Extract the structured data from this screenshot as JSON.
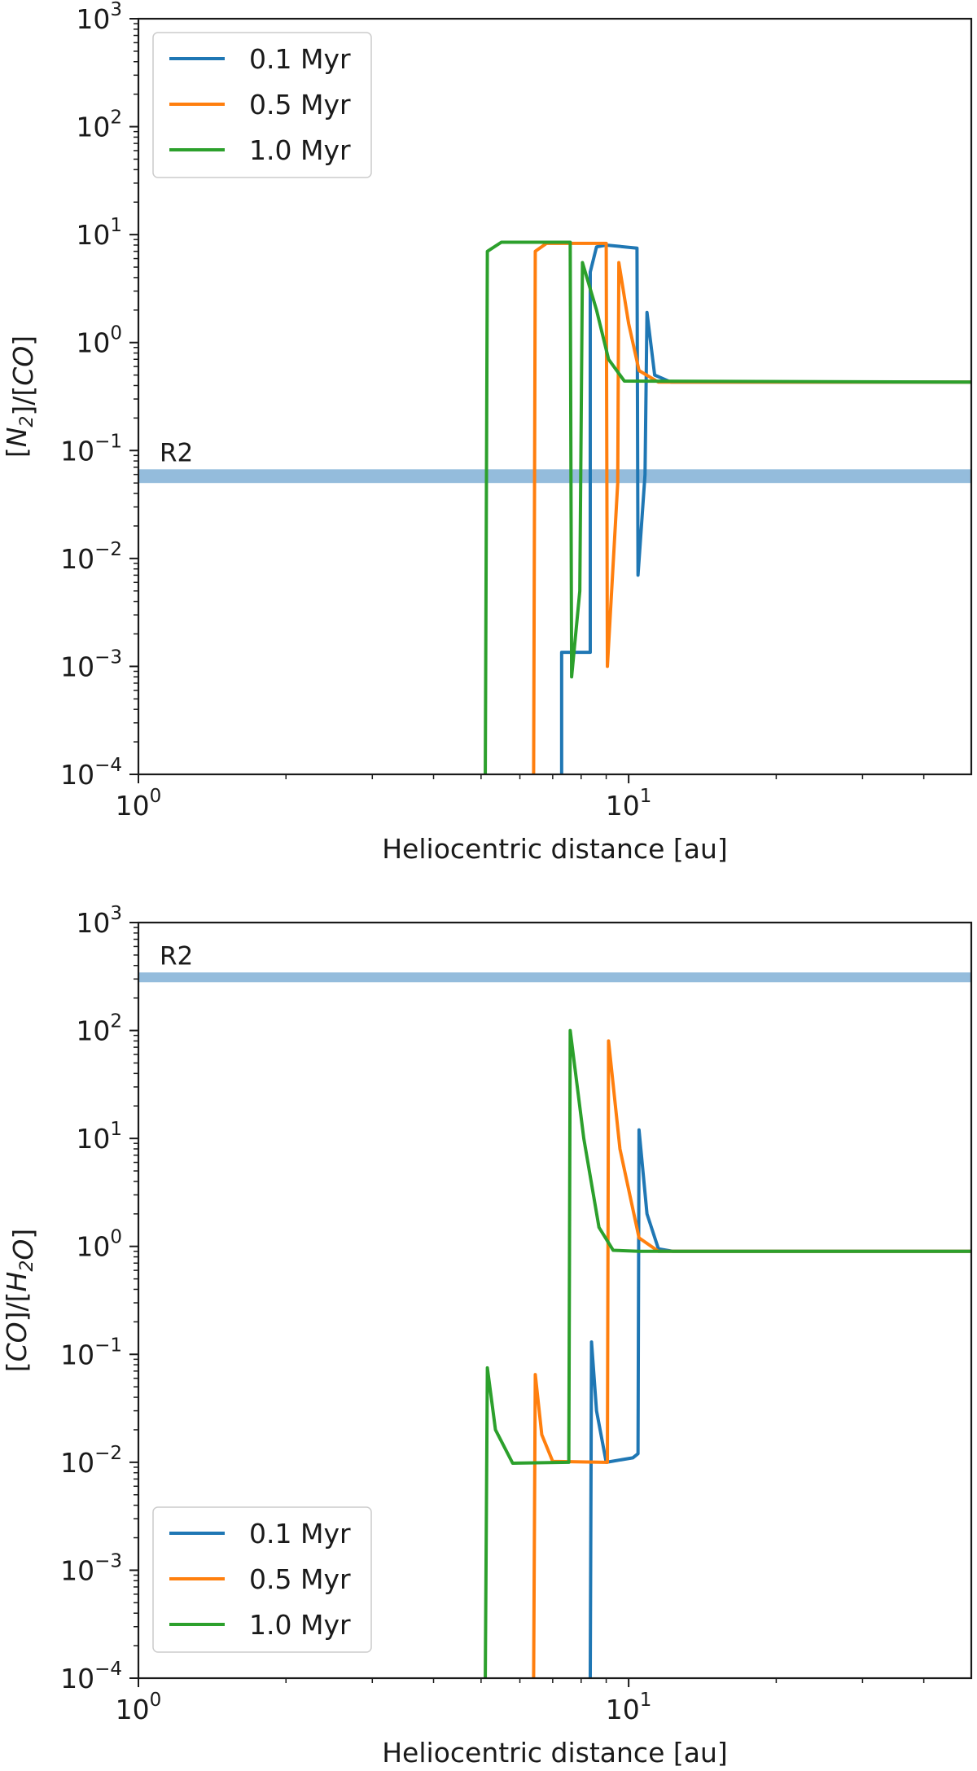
{
  "chart_data": [
    {
      "type": "line",
      "xscale": "log",
      "yscale": "log",
      "xlim": [
        1,
        50
      ],
      "ylim": [
        0.0001,
        1000
      ],
      "xlabel": "Heliocentric distance [au]",
      "ylabel": "[N2]/[CO]",
      "x_ticks": [
        {
          "value": 1,
          "base": "10",
          "exp": "0"
        },
        {
          "value": 10,
          "base": "10",
          "exp": "1"
        }
      ],
      "y_ticks": [
        {
          "value": 0.0001,
          "base": "10",
          "exp": "−4"
        },
        {
          "value": 0.001,
          "base": "10",
          "exp": "−3"
        },
        {
          "value": 0.01,
          "base": "10",
          "exp": "−2"
        },
        {
          "value": 0.1,
          "base": "10",
          "exp": "−1"
        },
        {
          "value": 1,
          "base": "10",
          "exp": "0"
        },
        {
          "value": 10,
          "base": "10",
          "exp": "1"
        },
        {
          "value": 100,
          "base": "10",
          "exp": "2"
        },
        {
          "value": 1000,
          "base": "10",
          "exp": "3"
        }
      ],
      "legend": "upper-left",
      "reference_band": {
        "label": "R2",
        "y_range": [
          0.05,
          0.067
        ],
        "color": "#94bcdc"
      },
      "series": [
        {
          "name": "0.1 Myr",
          "color": "#1f77b4",
          "points": [
            [
              7.3,
              0.0001
            ],
            [
              7.3,
              0.00135
            ],
            [
              8.35,
              0.00135
            ],
            [
              8.35,
              4.5
            ],
            [
              8.6,
              7.7
            ],
            [
              9.0,
              8.0
            ],
            [
              10.4,
              7.5
            ],
            [
              10.45,
              0.007
            ],
            [
              10.8,
              0.06
            ],
            [
              10.9,
              1.9
            ],
            [
              11.3,
              0.5
            ],
            [
              12.2,
              0.43
            ],
            [
              50,
              0.43
            ]
          ]
        },
        {
          "name": "0.5 Myr",
          "color": "#ff7f0e",
          "points": [
            [
              6.4,
              0.0001
            ],
            [
              6.45,
              7.0
            ],
            [
              6.8,
              8.3
            ],
            [
              9.0,
              8.3
            ],
            [
              9.05,
              0.001
            ],
            [
              9.5,
              0.05
            ],
            [
              9.55,
              5.5
            ],
            [
              10.0,
              1.5
            ],
            [
              10.5,
              0.55
            ],
            [
              11.5,
              0.43
            ],
            [
              50,
              0.43
            ]
          ]
        },
        {
          "name": "1.0 Myr",
          "color": "#2ca02c",
          "points": [
            [
              5.1,
              0.0001
            ],
            [
              5.15,
              7.0
            ],
            [
              5.5,
              8.5
            ],
            [
              7.6,
              8.5
            ],
            [
              7.65,
              0.0008
            ],
            [
              7.95,
              0.005
            ],
            [
              8.05,
              5.5
            ],
            [
              8.6,
              2.0
            ],
            [
              9.1,
              0.7
            ],
            [
              9.8,
              0.44
            ],
            [
              50,
              0.43
            ]
          ]
        }
      ]
    },
    {
      "type": "line",
      "xscale": "log",
      "yscale": "log",
      "xlim": [
        1,
        50
      ],
      "ylim": [
        0.0001,
        1000
      ],
      "xlabel": "Heliocentric distance [au]",
      "ylabel": "[CO]/[H2O]",
      "x_ticks": [
        {
          "value": 1,
          "base": "10",
          "exp": "0"
        },
        {
          "value": 10,
          "base": "10",
          "exp": "1"
        }
      ],
      "y_ticks": [
        {
          "value": 0.0001,
          "base": "10",
          "exp": "−4"
        },
        {
          "value": 0.001,
          "base": "10",
          "exp": "−3"
        },
        {
          "value": 0.01,
          "base": "10",
          "exp": "−2"
        },
        {
          "value": 0.1,
          "base": "10",
          "exp": "−1"
        },
        {
          "value": 1,
          "base": "10",
          "exp": "0"
        },
        {
          "value": 10,
          "base": "10",
          "exp": "1"
        },
        {
          "value": 100,
          "base": "10",
          "exp": "2"
        },
        {
          "value": 1000,
          "base": "10",
          "exp": "3"
        }
      ],
      "legend": "lower-left",
      "reference_band": {
        "label": "R2",
        "y_range": [
          280,
          345
        ],
        "color": "#94bcdc"
      },
      "series": [
        {
          "name": "0.1 Myr",
          "color": "#1f77b4",
          "points": [
            [
              8.35,
              0.0001
            ],
            [
              8.4,
              0.13
            ],
            [
              8.6,
              0.03
            ],
            [
              9.0,
              0.01
            ],
            [
              10.2,
              0.011
            ],
            [
              10.45,
              0.012
            ],
            [
              10.5,
              12.0
            ],
            [
              10.9,
              2.0
            ],
            [
              11.5,
              0.95
            ],
            [
              12.3,
              0.9
            ],
            [
              50,
              0.9
            ]
          ]
        },
        {
          "name": "0.5 Myr",
          "color": "#ff7f0e",
          "points": [
            [
              6.4,
              0.0001
            ],
            [
              6.45,
              0.065
            ],
            [
              6.65,
              0.018
            ],
            [
              7.0,
              0.0102
            ],
            [
              8.9,
              0.01
            ],
            [
              9.05,
              0.01
            ],
            [
              9.1,
              80.0
            ],
            [
              9.6,
              8.0
            ],
            [
              10.5,
              1.2
            ],
            [
              11.5,
              0.9
            ],
            [
              50,
              0.9
            ]
          ]
        },
        {
          "name": "1.0 Myr",
          "color": "#2ca02c",
          "points": [
            [
              5.1,
              0.0001
            ],
            [
              5.15,
              0.075
            ],
            [
              5.35,
              0.02
            ],
            [
              5.8,
              0.0098
            ],
            [
              7.55,
              0.01
            ],
            [
              7.6,
              100.0
            ],
            [
              8.1,
              10.0
            ],
            [
              8.7,
              1.5
            ],
            [
              9.3,
              0.92
            ],
            [
              10.5,
              0.9
            ],
            [
              50,
              0.9
            ]
          ]
        }
      ]
    }
  ]
}
